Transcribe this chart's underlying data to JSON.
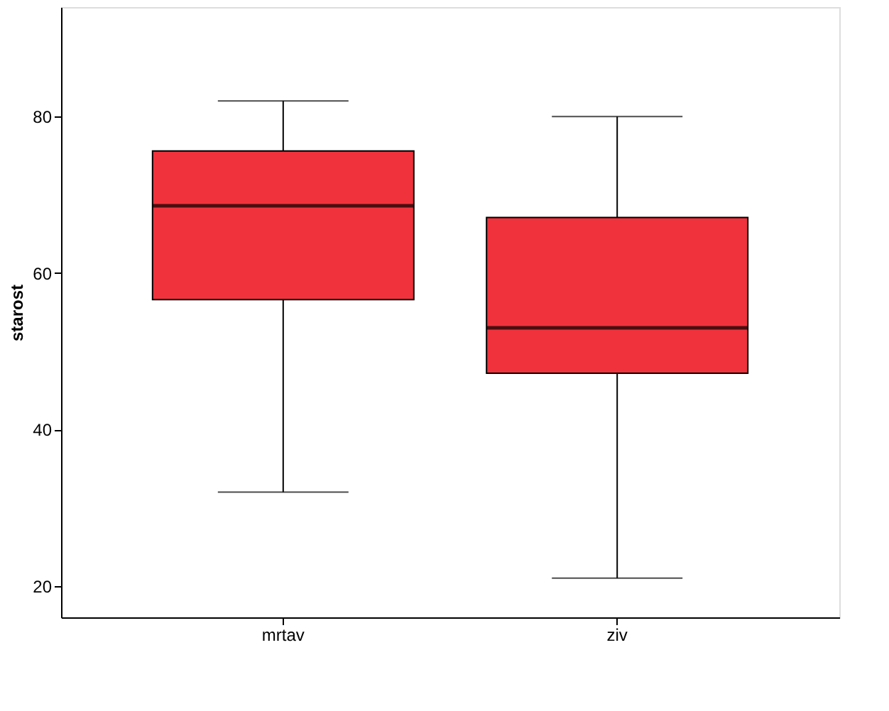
{
  "chart_data": {
    "type": "box",
    "ylabel": "starost",
    "categories": [
      "mrtav",
      "ziv"
    ],
    "boxes": [
      {
        "low": 32,
        "q1": 56.6,
        "median": 68.6,
        "q3": 75.6,
        "high": 82
      },
      {
        "low": 21,
        "q1": 47.2,
        "median": 53,
        "q3": 67.1,
        "high": 80
      }
    ],
    "colors": [
      "#f0323c",
      "#f0323c"
    ],
    "ylim": [
      16,
      94
    ],
    "yticks": [
      20,
      40,
      60,
      80
    ],
    "grid": false
  }
}
